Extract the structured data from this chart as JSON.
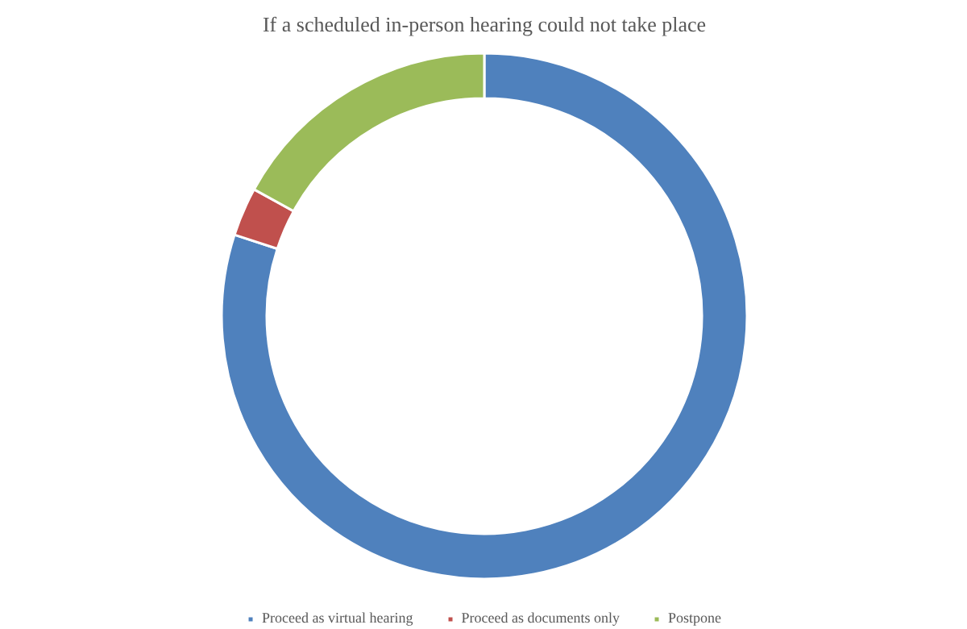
{
  "chart_data": {
    "type": "donut",
    "title": "If a scheduled in-person hearing could not take place",
    "categories": [
      "Proceed as virtual hearing",
      "Proceed as documents only",
      "Postpone"
    ],
    "values": [
      80,
      3,
      17
    ],
    "colors": [
      "#4f81bd",
      "#c0504d",
      "#9bbb59"
    ],
    "legend": "bottom"
  }
}
